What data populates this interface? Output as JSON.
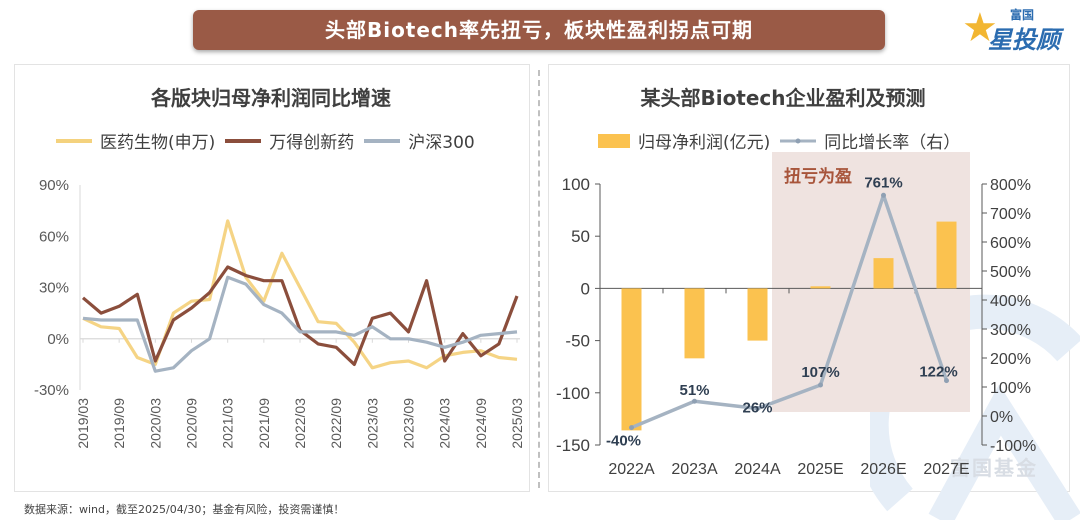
{
  "banner": {
    "title": "头部Biotech率先扭亏，板块性盈利拐点可期"
  },
  "logo": {
    "top": "富国",
    "main": "星投顾"
  },
  "watermark": {
    "text": "富国基金"
  },
  "footer": {
    "text": "数据来源：wind，截至2025/04/30；基金有风险，投资需谨慎！"
  },
  "colors": {
    "banner": "#9a5a46",
    "yellow": "#f7c95c",
    "brown": "#8b4e3c",
    "blue": "#a5b3c2",
    "bar": "#fbc24f",
    "shade": "#efe3e0",
    "annot": "#a8553b"
  },
  "chart_data": [
    {
      "type": "line",
      "title": "各版块归母净利润同比增速",
      "xlabel": "",
      "ylabel": "",
      "ylim": [
        -30,
        90
      ],
      "yticks": [
        "90%",
        "60%",
        "30%",
        "0%",
        "-30%"
      ],
      "ytick_values": [
        90,
        60,
        30,
        0,
        -30
      ],
      "grid": false,
      "legend": "top",
      "x": [
        "2019/03",
        "2019/06",
        "2019/09",
        "2019/12",
        "2020/03",
        "2020/06",
        "2020/09",
        "2020/12",
        "2021/03",
        "2021/06",
        "2021/09",
        "2021/12",
        "2022/03",
        "2022/06",
        "2022/09",
        "2022/12",
        "2023/03",
        "2023/06",
        "2023/09",
        "2023/12",
        "2024/03",
        "2024/06",
        "2024/09",
        "2024/12",
        "2025/03"
      ],
      "xtick_labels": [
        "2019/03",
        "2019/09",
        "2020/03",
        "2020/09",
        "2021/03",
        "2021/09",
        "2022/03",
        "2022/09",
        "2023/03",
        "2023/09",
        "2024/03",
        "2024/09",
        "2025/03"
      ],
      "series": [
        {
          "name": "医药生物(申万)",
          "color": "#f4d27e",
          "values": [
            12,
            7,
            6,
            -11,
            -15,
            15,
            22,
            23,
            69,
            36,
            22,
            50,
            30,
            10,
            9,
            -2,
            -17,
            -14,
            -13,
            -17,
            -10,
            -8,
            -7,
            -11,
            -12
          ]
        },
        {
          "name": "万得创新药",
          "color": "#8b4e3c",
          "values": [
            24,
            15,
            19,
            26,
            -13,
            11,
            18,
            27,
            42,
            37,
            34,
            34,
            5,
            -3,
            -5,
            -15,
            12,
            15,
            4,
            34,
            -13,
            3,
            -10,
            -3,
            25
          ]
        },
        {
          "name": "沪深300",
          "color": "#a5b3c2",
          "values": [
            12,
            11,
            11,
            11,
            -19,
            -17,
            -7,
            0,
            36,
            32,
            20,
            15,
            4,
            4,
            4,
            2,
            7,
            0,
            0,
            -2,
            -5,
            -2,
            2,
            3,
            4
          ]
        }
      ]
    },
    {
      "type": "bar",
      "title": "某头部Biotech企业盈利及预测",
      "categories": [
        "2022A",
        "2023A",
        "2024A",
        "2025E",
        "2026E",
        "2027E"
      ],
      "ylim": [
        -150,
        100
      ],
      "yticks": [
        "100",
        "50",
        "0",
        "-50",
        "-100",
        "-150"
      ],
      "ytick_values": [
        100,
        50,
        0,
        -50,
        -100,
        -150
      ],
      "y2lim": [
        -100,
        800
      ],
      "y2ticks": [
        "800%",
        "700%",
        "600%",
        "500%",
        "400%",
        "300%",
        "200%",
        "100%",
        "0%",
        "-100%"
      ],
      "y2tick_values": [
        800,
        700,
        600,
        500,
        400,
        300,
        200,
        100,
        0,
        -100
      ],
      "legend": "top",
      "series": [
        {
          "name": "归母净利润(亿元)",
          "type": "bar",
          "axis": "left",
          "color": "#fbc24f",
          "values": [
            -136,
            -67,
            -50,
            2,
            29,
            64
          ]
        },
        {
          "name": "同比增长率（右）",
          "type": "line",
          "axis": "right",
          "color": "#a5b3c2",
          "values": [
            -40,
            51,
            26,
            107,
            761,
            122
          ],
          "labels": [
            "-40%",
            "51%",
            "26%",
            "107%",
            "761%",
            "122%"
          ]
        }
      ],
      "annotation": {
        "text": "扭亏为盈",
        "region": [
          "2024A",
          "2027E"
        ]
      }
    }
  ]
}
